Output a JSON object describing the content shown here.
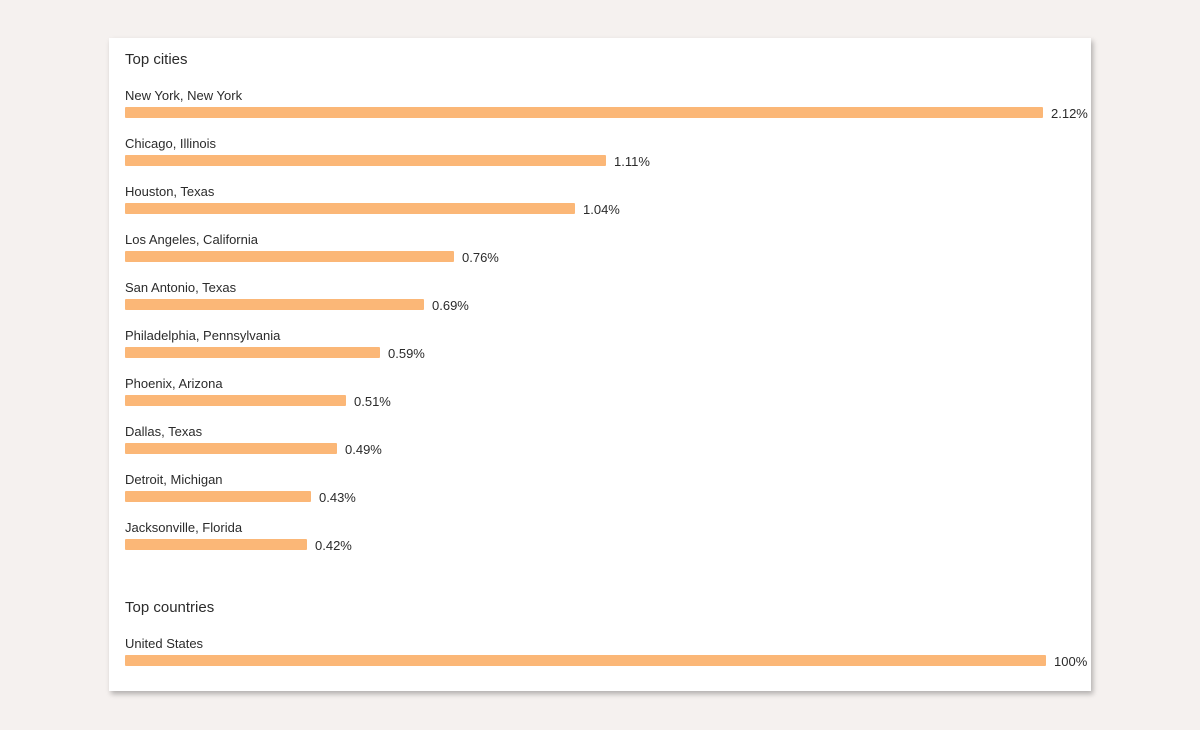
{
  "top_cities": {
    "title": "Top cities",
    "items": [
      {
        "label": "New York, New York",
        "pct_text": "2.12%",
        "value": 2.12
      },
      {
        "label": "Chicago, Illinois",
        "pct_text": "1.11%",
        "value": 1.11
      },
      {
        "label": "Houston, Texas",
        "pct_text": "1.04%",
        "value": 1.04
      },
      {
        "label": "Los Angeles, California",
        "pct_text": "0.76%",
        "value": 0.76
      },
      {
        "label": "San Antonio, Texas",
        "pct_text": "0.69%",
        "value": 0.69
      },
      {
        "label": "Philadelphia, Pennsylvania",
        "pct_text": "0.59%",
        "value": 0.59
      },
      {
        "label": "Phoenix, Arizona",
        "pct_text": "0.51%",
        "value": 0.51
      },
      {
        "label": "Dallas, Texas",
        "pct_text": "0.49%",
        "value": 0.49
      },
      {
        "label": "Detroit, Michigan",
        "pct_text": "0.43%",
        "value": 0.43
      },
      {
        "label": "Jacksonville, Florida",
        "pct_text": "0.42%",
        "value": 0.42
      }
    ]
  },
  "top_countries": {
    "title": "Top countries",
    "items": [
      {
        "label": "United States",
        "pct_text": "100%",
        "value": 100
      }
    ]
  },
  "colors": {
    "bar": "#fbb777",
    "background": "#f5f1ef",
    "card": "#ffffff"
  }
}
